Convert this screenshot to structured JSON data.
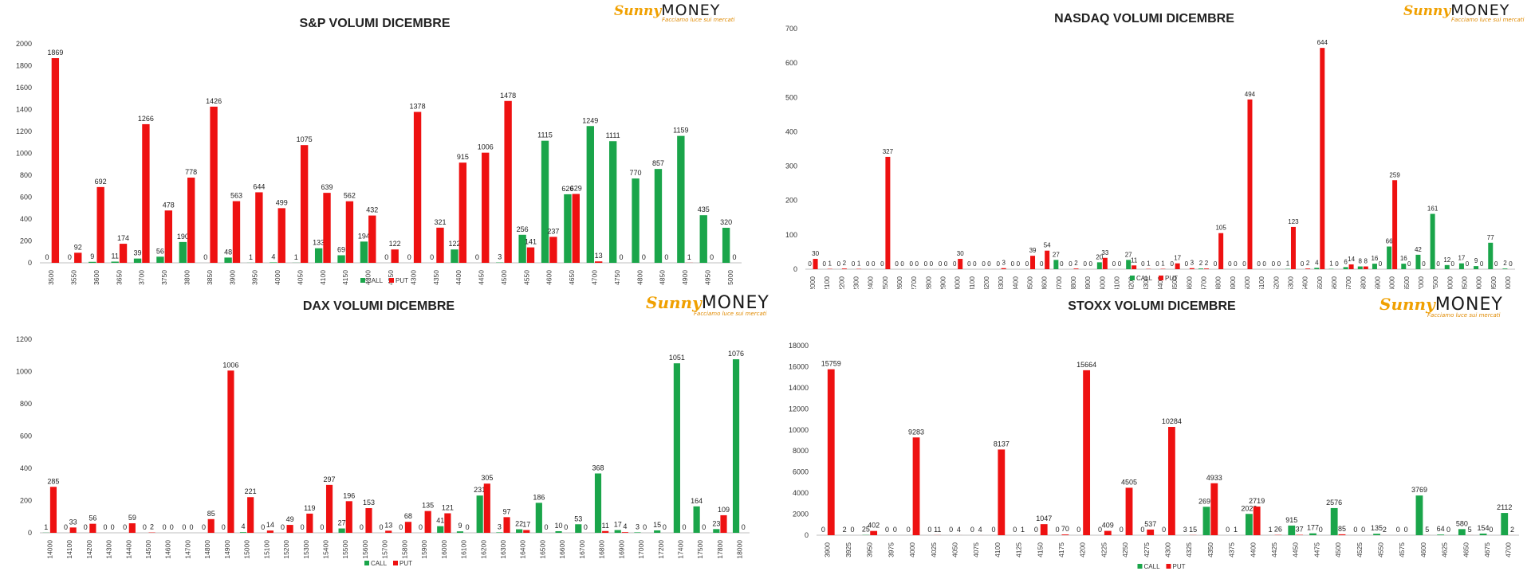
{
  "brand": {
    "name_a": "Sunny",
    "name_b": "MONEY",
    "tagline": "Facciamo luce sui mercati"
  },
  "colors": {
    "call": "#1aa54a",
    "put": "#ee1111",
    "axis": "#444444",
    "grid": "#d9d9d9"
  },
  "chart_data": [
    {
      "type": "bar",
      "title": "S&P VOLUMI DICEMBRE",
      "xlabel": "",
      "ylabel": "",
      "ylim": [
        0,
        2000
      ],
      "yticks": [
        0,
        200,
        400,
        600,
        800,
        1000,
        1200,
        1400,
        1600,
        1800,
        2000
      ],
      "grid": false,
      "legend": "bottom-center",
      "categories": [
        "3500",
        "3550",
        "3600",
        "3650",
        "3700",
        "3750",
        "3800",
        "3850",
        "3900",
        "3950",
        "4000",
        "4050",
        "4100",
        "4150",
        "4200",
        "4250",
        "4300",
        "4350",
        "4400",
        "4450",
        "4500",
        "4550",
        "4600",
        "4650",
        "4700",
        "4750",
        "4800",
        "4850",
        "4900",
        "4950",
        "5000"
      ],
      "series": [
        {
          "name": "CALL",
          "values": [
            0,
            0,
            9,
            11,
            39,
            56,
            190,
            0,
            48,
            1,
            4,
            1,
            133,
            69,
            194,
            0,
            0,
            0,
            122,
            0,
            3,
            256,
            1115,
            626,
            1249,
            1111,
            770,
            857,
            1159,
            435,
            320
          ]
        },
        {
          "name": "PUT",
          "values": [
            1869,
            92,
            692,
            174,
            1266,
            478,
            778,
            1426,
            563,
            644,
            499,
            1075,
            639,
            562,
            432,
            122,
            1378,
            321,
            915,
            1006,
            1478,
            141,
            237,
            629,
            13,
            0,
            0,
            0,
            1,
            0,
            0
          ]
        }
      ]
    },
    {
      "type": "bar",
      "title": "NASDAQ VOLUMI DICEMBRE",
      "xlabel": "",
      "ylabel": "",
      "ylim": [
        0,
        700
      ],
      "yticks": [
        0,
        100,
        200,
        300,
        400,
        500,
        600,
        700
      ],
      "grid": false,
      "legend": "bottom-center",
      "categories": [
        "12000",
        "12100",
        "12200",
        "12300",
        "12400",
        "12500",
        "12600",
        "12700",
        "12800",
        "12900",
        "13000",
        "13100",
        "13200",
        "13300",
        "13400",
        "13500",
        "13600",
        "13700",
        "13800",
        "13900",
        "14000",
        "14100",
        "14200",
        "14300",
        "14400",
        "14500",
        "14600",
        "14700",
        "14800",
        "14900",
        "15000",
        "15100",
        "15200",
        "15300",
        "15400",
        "15500",
        "15600",
        "15700",
        "15800",
        "15900",
        "16000",
        "16500",
        "17000",
        "17500",
        "18000",
        "18500",
        "19000",
        "19500",
        "20000"
      ],
      "series": [
        {
          "name": "CALL",
          "values": [
            0,
            0,
            0,
            0,
            0,
            0,
            0,
            0,
            0,
            0,
            0,
            0,
            0,
            0,
            0,
            0,
            0,
            27,
            0,
            0,
            20,
            0,
            27,
            0,
            0,
            0,
            0,
            2,
            0,
            0,
            0,
            0,
            0,
            1,
            0,
            4,
            1,
            6,
            8,
            16,
            66,
            16,
            42,
            161,
            12,
            17,
            9,
            77,
            2
          ]
        },
        {
          "name": "PUT",
          "values": [
            30,
            1,
            2,
            1,
            0,
            327,
            0,
            0,
            0,
            0,
            30,
            0,
            0,
            3,
            0,
            39,
            54,
            0,
            2,
            0,
            33,
            0,
            11,
            1,
            1,
            17,
            3,
            2,
            105,
            0,
            494,
            0,
            0,
            123,
            2,
            644,
            0,
            14,
            8,
            0,
            259,
            0,
            0,
            0,
            0,
            0,
            0,
            0,
            0
          ]
        }
      ]
    },
    {
      "type": "bar",
      "title": "DAX VOLUMI DICEMBRE",
      "xlabel": "",
      "ylabel": "",
      "ylim": [
        0,
        1200
      ],
      "yticks": [
        0,
        200,
        400,
        600,
        800,
        1000,
        1200
      ],
      "grid": false,
      "legend": "bottom-center",
      "categories": [
        "14000",
        "14100",
        "14200",
        "14300",
        "14400",
        "14500",
        "14600",
        "14700",
        "14800",
        "14900",
        "15000",
        "15100",
        "15200",
        "15300",
        "15400",
        "15500",
        "15600",
        "15700",
        "15800",
        "15900",
        "16000",
        "16100",
        "16200",
        "16300",
        "16400",
        "16500",
        "16600",
        "16700",
        "16800",
        "16900",
        "17000",
        "17200",
        "17400",
        "17500",
        "17800",
        "18000"
      ],
      "series": [
        {
          "name": "CALL",
          "values": [
            1,
            0,
            0,
            0,
            0,
            0,
            0,
            0,
            0,
            0,
            4,
            0,
            0,
            0,
            0,
            27,
            0,
            0,
            0,
            0,
            41,
            9,
            231,
            3,
            22,
            186,
            10,
            53,
            368,
            17,
            3,
            15,
            1051,
            164,
            23,
            1076
          ]
        },
        {
          "name": "PUT",
          "values": [
            285,
            33,
            56,
            0,
            59,
            2,
            0,
            0,
            85,
            1006,
            221,
            14,
            49,
            119,
            297,
            196,
            153,
            13,
            68,
            135,
            121,
            0,
            305,
            97,
            17,
            0,
            0,
            0,
            11,
            4,
            0,
            0,
            0,
            0,
            109,
            0
          ]
        }
      ]
    },
    {
      "type": "bar",
      "title": "STOXX VOLUMI DICEMBRE",
      "xlabel": "",
      "ylabel": "",
      "ylim": [
        0,
        18000
      ],
      "yticks": [
        0,
        2000,
        4000,
        6000,
        8000,
        10000,
        12000,
        14000,
        16000,
        18000
      ],
      "grid": false,
      "legend": "bottom-center",
      "categories": [
        "3900",
        "3925",
        "3950",
        "3975",
        "4000",
        "4025",
        "4050",
        "4075",
        "4100",
        "4125",
        "4150",
        "4175",
        "4200",
        "4225",
        "4250",
        "4275",
        "4300",
        "4325",
        "4350",
        "4375",
        "4400",
        "4425",
        "4450",
        "4475",
        "4500",
        "4525",
        "4550",
        "4575",
        "4600",
        "4625",
        "4650",
        "4675",
        "4700"
      ],
      "series": [
        {
          "name": "CALL",
          "values": [
            0,
            2,
            25,
            0,
            0,
            0,
            0,
            0,
            0,
            0,
            0,
            0,
            0,
            0,
            0,
            0,
            0,
            3,
            2697,
            0,
            2023,
            1,
            915,
            177,
            2576,
            0,
            135,
            0,
            3769,
            64,
            580,
            154,
            2112
          ]
        },
        {
          "name": "PUT",
          "values": [
            15759,
            0,
            402,
            0,
            9283,
            11,
            4,
            4,
            8137,
            1,
            1047,
            70,
            15664,
            409,
            4505,
            537,
            10284,
            15,
            4933,
            1,
            2719,
            26,
            37,
            0,
            85,
            0,
            2,
            0,
            5,
            0,
            5,
            0,
            2
          ]
        }
      ]
    }
  ]
}
